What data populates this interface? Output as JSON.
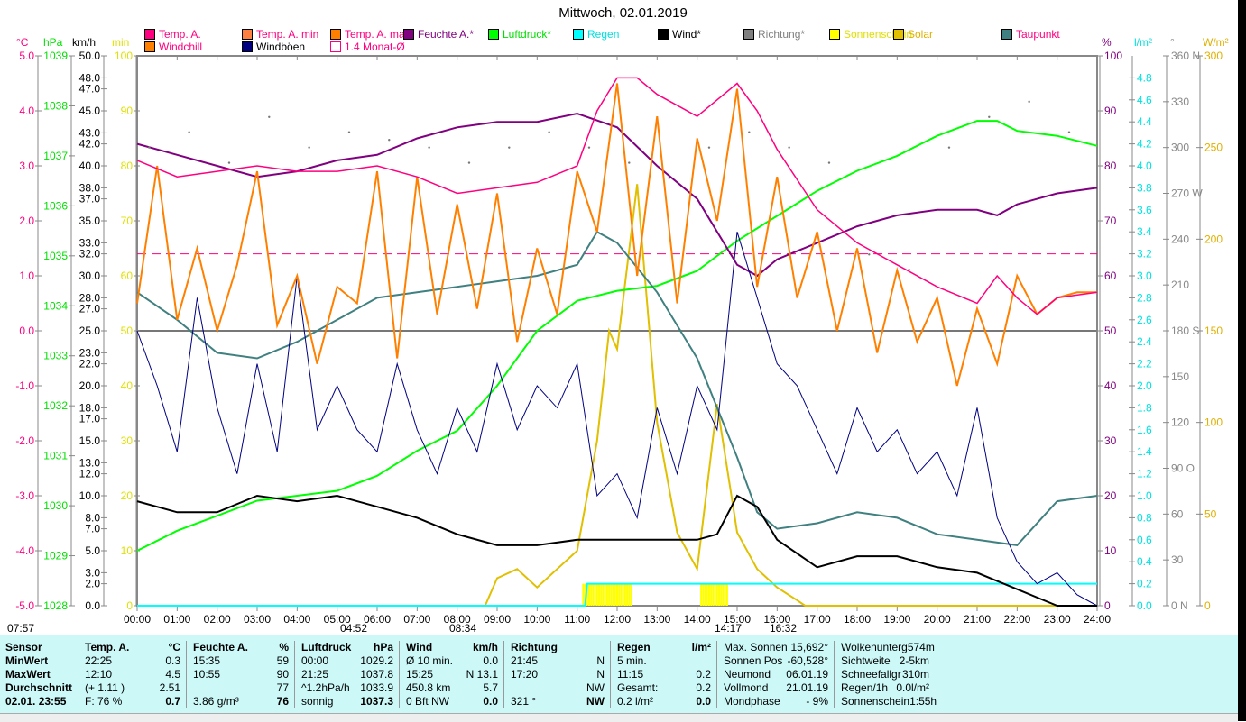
{
  "title": "Mittwoch, 02.01.2019",
  "legend": [
    {
      "label": "Temp. A.",
      "color": "#ff0080",
      "text": "#ff0080"
    },
    {
      "label": "Temp. A. min",
      "color": "#ff8040",
      "text": "#ff0080"
    },
    {
      "label": "Temp. A. max",
      "color": "#ff8000",
      "text": "#ff0080"
    },
    {
      "label": "Feuchte A.*",
      "color": "#800080",
      "text": "#800080"
    },
    {
      "label": "Luftdruck*",
      "color": "#00ff00",
      "text": "#00e000"
    },
    {
      "label": "Regen",
      "color": "#00ffff",
      "text": "#00e0e0"
    },
    {
      "label": "Wind*",
      "color": "#000000",
      "text": "#000000"
    },
    {
      "label": "Richtung*",
      "color": "#808080",
      "text": "#808080"
    },
    {
      "label": "Sonnenschein",
      "color": "#ffff00",
      "text": "#e0e000"
    },
    {
      "label": "Solar",
      "color": "#e0c000",
      "text": "#e0b000"
    },
    {
      "label": "Taupunkt",
      "color": "#408080",
      "text": "#ff0080"
    },
    {
      "label": "Windchill",
      "color": "#ff8000",
      "text": "#ff0080"
    },
    {
      "label": "Windböen",
      "color": "#000080",
      "text": "#000000"
    },
    {
      "label": "1.4 Monat-Ø",
      "color": "#ff0080",
      "text": "#ff0080"
    }
  ],
  "units": {
    "c": "°C",
    "hpa": "hPa",
    "kmh": "km/h",
    "min": "min",
    "pct": "%",
    "lm2": "l/m²",
    "deg": "°",
    "wm2": "W/m²"
  },
  "sun_events": {
    "sunrise_prev": "07:57",
    "moonrise": "04:52",
    "sunrise": "08:34",
    "moonset": "14:17",
    "sunset": "16:32"
  },
  "chart_data": {
    "type": "line",
    "title": "Mittwoch, 02.01.2019",
    "x_labels": [
      "00:00",
      "01:00",
      "02:00",
      "03:00",
      "04:00",
      "05:00",
      "06:00",
      "07:00",
      "08:00",
      "09:00",
      "10:00",
      "11:00",
      "12:00",
      "13:00",
      "14:00",
      "15:00",
      "16:00",
      "17:00",
      "18:00",
      "19:00",
      "20:00",
      "21:00",
      "22:00",
      "23:00",
      "24:00"
    ],
    "axes": {
      "c": {
        "range": [
          -5,
          5
        ],
        "ticks": [
          "5.0",
          "4.0",
          "3.0",
          "2.0",
          "1.0",
          "0.0",
          "-1.0",
          "-2.0",
          "-3.0",
          "-4.0",
          "-5.0"
        ]
      },
      "hpa": {
        "range": [
          1028,
          1039
        ],
        "ticks": [
          "1039",
          "1038",
          "1037",
          "1036",
          "1035",
          "1034",
          "1033",
          "1032",
          "1031",
          "1030",
          "1029",
          "1028"
        ]
      },
      "kmh": {
        "range": [
          0,
          50
        ],
        "ticks": [
          "50.0",
          "48.0",
          "47.0",
          "45.0",
          "43.0",
          "42.0",
          "40.0",
          "38.0",
          "37.0",
          "35.0",
          "33.0",
          "32.0",
          "30.0",
          "28.0",
          "27.0",
          "25.0",
          "23.0",
          "22.0",
          "20.0",
          "18.0",
          "17.0",
          "15.0",
          "13.0",
          "12.0",
          "10.0",
          "8.0",
          "7.0",
          "5.0",
          "3.0",
          "2.0",
          "0.0"
        ]
      },
      "min": {
        "range": [
          0,
          100
        ],
        "ticks": [
          "100",
          "90",
          "80",
          "70",
          "60",
          "50",
          "40",
          "30",
          "20",
          "10",
          "0"
        ]
      },
      "pct": {
        "range": [
          0,
          100
        ],
        "ticks": [
          "100",
          "90",
          "80",
          "70",
          "60",
          "50",
          "40",
          "30",
          "20",
          "10",
          "0"
        ]
      },
      "lm2": {
        "range": [
          0,
          5
        ],
        "ticks": [
          "4.8",
          "4.6",
          "4.4",
          "4.2",
          "4.0",
          "3.8",
          "3.6",
          "3.4",
          "3.2",
          "3.0",
          "2.8",
          "2.6",
          "2.4",
          "2.2",
          "2.0",
          "1.8",
          "1.6",
          "1.4",
          "1.2",
          "1.0",
          "0.8",
          "0.6",
          "0.4",
          "0.2",
          "0.0"
        ]
      },
      "deg": {
        "range": [
          0,
          360
        ],
        "ticks": [
          "360 N",
          "330",
          "300",
          "270 W",
          "240",
          "210",
          "180 S",
          "150",
          "120",
          "90 O",
          "60",
          "30",
          "0 N"
        ]
      },
      "wm2": {
        "range": [
          0,
          300
        ],
        "ticks": [
          "300",
          "250",
          "200",
          "150",
          "100",
          "50",
          "0"
        ]
      }
    },
    "monthly_avg_c": 1.4,
    "series": [
      {
        "name": "Temp. A.",
        "unit": "c",
        "color": "#ff0080",
        "x": [
          0,
          1,
          2,
          3,
          4,
          5,
          6,
          7,
          8,
          9,
          10,
          11,
          11.5,
          12,
          12.5,
          13,
          14,
          14.5,
          15,
          15.5,
          16,
          17,
          18,
          19,
          20,
          21,
          21.5,
          22,
          22.5,
          23,
          24
        ],
        "values": [
          3.1,
          2.8,
          2.9,
          3.0,
          2.9,
          2.9,
          3.0,
          2.8,
          2.5,
          2.6,
          2.7,
          3.0,
          4.0,
          4.6,
          4.6,
          4.3,
          3.9,
          4.2,
          4.5,
          4.0,
          3.3,
          2.2,
          1.6,
          1.2,
          0.8,
          0.5,
          1.0,
          0.6,
          0.3,
          0.6,
          0.7
        ]
      },
      {
        "name": "Windchill",
        "unit": "c",
        "color": "#ff8000",
        "x": [
          0,
          0.5,
          1,
          1.5,
          2,
          2.5,
          3,
          3.5,
          4,
          4.5,
          5,
          5.5,
          6,
          6.5,
          7,
          7.5,
          8,
          8.5,
          9,
          9.5,
          10,
          10.5,
          11,
          11.5,
          12,
          12.5,
          13,
          13.5,
          14,
          14.5,
          15,
          15.5,
          16,
          16.5,
          17,
          17.5,
          18,
          18.5,
          19,
          19.5,
          20,
          20.5,
          21,
          21.5,
          22,
          22.5,
          23,
          23.5,
          24
        ],
        "values": [
          0.5,
          3.0,
          0.2,
          1.5,
          0.0,
          1.2,
          2.9,
          0.1,
          1.0,
          -0.6,
          0.8,
          0.5,
          2.9,
          -0.5,
          2.8,
          0.3,
          2.3,
          0.4,
          2.5,
          -0.2,
          1.5,
          0.3,
          2.9,
          1.8,
          4.5,
          1.0,
          3.9,
          0.5,
          3.5,
          2.0,
          4.4,
          0.8,
          2.8,
          0.6,
          1.8,
          0.0,
          1.5,
          -0.4,
          1.1,
          -0.2,
          0.6,
          -1.0,
          0.4,
          -0.6,
          1.0,
          0.3,
          0.6,
          0.7,
          0.7
        ]
      },
      {
        "name": "Feuchte A.",
        "unit": "pct",
        "color": "#800080",
        "x": [
          0,
          1,
          2,
          3,
          4,
          5,
          6,
          7,
          8,
          9,
          10,
          11,
          12,
          13,
          14,
          15,
          15.5,
          16,
          17,
          18,
          19,
          20,
          21,
          21.5,
          22,
          23,
          24
        ],
        "values": [
          84,
          82,
          80,
          78,
          79,
          81,
          82,
          85,
          87,
          88,
          88,
          89.5,
          87,
          80,
          74,
          62,
          60,
          63,
          66,
          69,
          71,
          72,
          72,
          71,
          73,
          75,
          76
        ]
      },
      {
        "name": "Luftdruck",
        "unit": "hpa",
        "color": "#00ff00",
        "x": [
          0,
          1,
          2,
          3,
          4,
          5,
          6,
          7,
          8,
          9,
          10,
          11,
          12,
          13,
          14,
          15,
          16,
          17,
          18,
          19,
          20,
          21,
          21.5,
          22,
          23,
          24
        ],
        "values": [
          1029.1,
          1029.5,
          1029.8,
          1030.1,
          1030.2,
          1030.3,
          1030.6,
          1031.1,
          1031.5,
          1032.4,
          1033.5,
          1034.1,
          1034.3,
          1034.4,
          1034.7,
          1035.3,
          1035.8,
          1036.3,
          1036.7,
          1037.0,
          1037.4,
          1037.7,
          1037.7,
          1037.5,
          1037.4,
          1037.2
        ]
      },
      {
        "name": "Taupunkt",
        "unit": "c",
        "color": "#408080",
        "x": [
          0,
          1,
          2,
          3,
          4,
          5,
          6,
          7,
          8,
          9,
          10,
          11,
          11.5,
          12,
          13,
          14,
          15,
          15.5,
          16,
          17,
          18,
          19,
          20,
          21,
          22,
          23,
          24
        ],
        "values": [
          0.7,
          0.2,
          -0.4,
          -0.5,
          -0.2,
          0.2,
          0.6,
          0.7,
          0.8,
          0.9,
          1.0,
          1.2,
          1.8,
          1.6,
          0.7,
          -0.5,
          -2.3,
          -3.3,
          -3.6,
          -3.5,
          -3.3,
          -3.4,
          -3.7,
          -3.8,
          -3.9,
          -3.1,
          -3.0
        ]
      },
      {
        "name": "Wind",
        "unit": "kmh",
        "color": "#000000",
        "x": [
          0,
          1,
          2,
          3,
          4,
          5,
          6,
          7,
          8,
          9,
          10,
          11,
          12,
          13,
          14,
          14.5,
          15,
          15.5,
          16,
          17,
          18,
          19,
          20,
          21,
          22,
          23,
          24
        ],
        "values": [
          9.5,
          8.5,
          8.5,
          10,
          9.5,
          10,
          9,
          8,
          6.5,
          5.5,
          5.5,
          6,
          6,
          6,
          6,
          6.5,
          10,
          9,
          6,
          3.5,
          4.5,
          4.5,
          3.5,
          3,
          1.5,
          0,
          0
        ]
      },
      {
        "name": "Windböen",
        "unit": "kmh",
        "color": "#000080",
        "x": [
          0,
          0.5,
          1,
          1.5,
          2,
          2.5,
          3,
          3.5,
          4,
          4.5,
          5,
          5.5,
          6,
          6.5,
          7,
          7.5,
          8,
          8.5,
          9,
          9.5,
          10,
          10.5,
          11,
          11.5,
          12,
          12.5,
          13,
          13.5,
          14,
          14.5,
          15,
          15.5,
          16,
          16.5,
          17,
          17.5,
          18,
          18.5,
          19,
          19.5,
          20,
          20.5,
          21,
          21.5,
          22,
          22.5,
          23,
          23.5,
          24
        ],
        "values": [
          25,
          20,
          14,
          28,
          18,
          12,
          22,
          14,
          30,
          16,
          20,
          16,
          14,
          22,
          16,
          12,
          18,
          14,
          22,
          16,
          20,
          18,
          22,
          10,
          12,
          8,
          18,
          12,
          20,
          16,
          34,
          28,
          22,
          20,
          16,
          12,
          18,
          14,
          16,
          12,
          14,
          10,
          18,
          8,
          4,
          2,
          3,
          1,
          0
        ]
      },
      {
        "name": "Solar",
        "unit": "wm2",
        "color": "#e0c000",
        "x": [
          0,
          8.7,
          9,
          9.5,
          10,
          10.5,
          11,
          11.5,
          11.8,
          12,
          12.5,
          13,
          13.5,
          14,
          14.5,
          15,
          15.5,
          16,
          16.5,
          16.7,
          24
        ],
        "values": [
          0,
          0,
          15,
          20,
          10,
          20,
          30,
          90,
          150,
          140,
          230,
          100,
          40,
          20,
          110,
          40,
          20,
          10,
          3,
          0,
          0
        ]
      },
      {
        "name": "Regen",
        "unit": "lm2",
        "color": "#00ffff",
        "x": [
          0,
          11.2,
          11.25,
          24
        ],
        "values": [
          0,
          0,
          0.2,
          0.2
        ]
      },
      {
        "name": "Richtung",
        "unit": "deg",
        "color": "#808080",
        "x": [
          0,
          1,
          2,
          3,
          4,
          5,
          6,
          7,
          8,
          9,
          10,
          11,
          12,
          13,
          14,
          15,
          16,
          17,
          18,
          19,
          20,
          21,
          22,
          23
        ],
        "values": [
          300,
          310,
          290,
          320,
          300,
          310,
          305,
          300,
          290,
          300,
          310,
          300,
          290,
          280,
          300,
          310,
          300,
          290,
          230,
          220,
          300,
          320,
          330,
          310
        ]
      },
      {
        "name": "Sonnenschein",
        "unit": "min",
        "color": "#ffff00",
        "intervals": [
          [
            11.15,
            12.4
          ],
          [
            14.1,
            14.8
          ]
        ]
      }
    ]
  },
  "table": {
    "sensor": {
      "h": "Sensor",
      "rows": [
        "MinWert",
        "MaxWert",
        "Durchschnitt",
        "02.01. 23:55"
      ]
    },
    "temp": {
      "h": "Temp. A.",
      "u": "°C",
      "rows": [
        [
          "22:25",
          "0.3"
        ],
        [
          "12:10",
          "4.5"
        ],
        [
          "(+ 1.11 )",
          "2.51"
        ],
        [
          "F: 76 %",
          "0.7"
        ]
      ]
    },
    "hum": {
      "h": "Feuchte A.",
      "u": "%",
      "rows": [
        [
          "15:35",
          "59"
        ],
        [
          "10:55",
          "90"
        ],
        [
          "",
          "77"
        ],
        [
          "3.86 g/m³",
          "76"
        ]
      ]
    },
    "press": {
      "h": "Luftdruck",
      "u": "hPa",
      "rows": [
        [
          "00:00",
          "1029.2"
        ],
        [
          "21:25",
          "1037.8"
        ],
        [
          "^1.2hPa/h",
          "1033.9"
        ],
        [
          "sonnig",
          "1037.3"
        ]
      ]
    },
    "wind": {
      "h": "Wind",
      "u": "km/h",
      "rows": [
        [
          "Ø 10 min.",
          "0.0"
        ],
        [
          "15:25",
          "N 13.1"
        ],
        [
          "450.8 km",
          "5.7"
        ],
        [
          "0 Bft NW",
          "0.0"
        ]
      ]
    },
    "dir": {
      "h": "Richtung",
      "u": "",
      "rows": [
        [
          "21:45",
          "N"
        ],
        [
          "17:20",
          "N"
        ],
        [
          "",
          "NW"
        ],
        [
          "321 °",
          "NW"
        ]
      ]
    },
    "rain": {
      "h": "Regen",
      "u": "l/m²",
      "rows": [
        [
          "5 min.",
          ""
        ],
        [
          "11:15",
          "0.2"
        ],
        [
          "Gesamt:",
          "0.2"
        ],
        [
          "0.2 l/m²",
          "0.0"
        ]
      ]
    },
    "sun": {
      "rows": [
        [
          "Max. Sonnen",
          "15,692°"
        ],
        [
          "Sonnen Pos",
          "-60,528°"
        ],
        [
          "Neumond",
          "06.01.19"
        ],
        [
          "Vollmond",
          "21.01.19"
        ],
        [
          "Mondphase",
          "- 9%"
        ]
      ]
    },
    "misc": {
      "rows": [
        [
          "Wolkenunterg",
          "574m"
        ],
        [
          "Sichtweite",
          "2-5km"
        ],
        [
          "Schneefallgr",
          "310m"
        ],
        [
          "Regen/1h",
          "0.0l/m²"
        ],
        [
          "Sonnenschein",
          "1:55h"
        ]
      ]
    }
  }
}
